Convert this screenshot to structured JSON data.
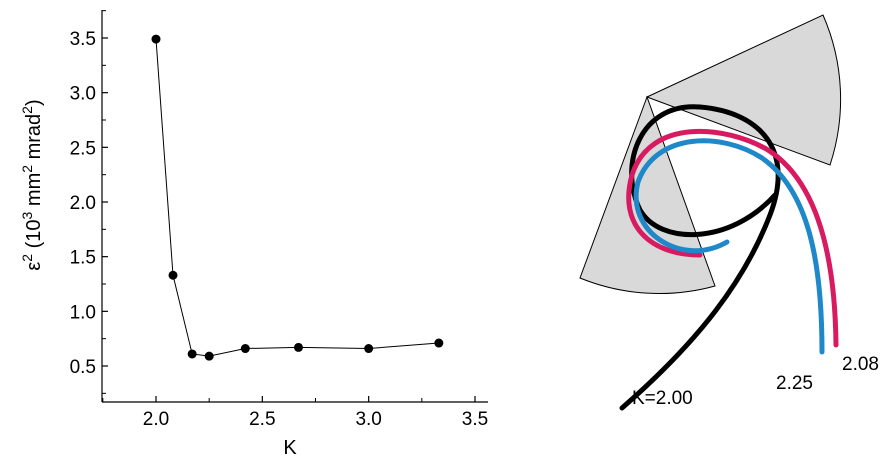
{
  "chart_data": [
    {
      "type": "line",
      "xlabel": "K",
      "ylabel": {
        "symbol": "ε",
        "sup1": "2",
        "open": " (10",
        "sup2": "3",
        "mid": " mm",
        "sup3": "2",
        "mid2": " mrad",
        "sup4": "2",
        "close": ")"
      },
      "xlim": [
        1.75,
        3.55
      ],
      "ylim": [
        0.25,
        3.75
      ],
      "xticks": [
        "2.0",
        "2.5",
        "3.0",
        "3.5"
      ],
      "yticks": [
        "0.5",
        "1.0",
        "1.5",
        "2.0",
        "2.5",
        "3.0",
        "3.5"
      ],
      "marker": "filled-circle",
      "grid": false,
      "series": [
        {
          "x": [
            2.0,
            2.08,
            2.17,
            2.25,
            2.42,
            2.67,
            3.0,
            3.33
          ],
          "y": [
            3.49,
            1.33,
            0.61,
            0.59,
            0.66,
            0.67,
            0.66,
            0.71
          ]
        }
      ]
    }
  ],
  "diagram": {
    "curve_labels": {
      "k200": "K=2.00",
      "k225": "2.25",
      "k208": "2.08"
    },
    "colors": {
      "k200": "#000000",
      "k208": "#d81b60",
      "k225": "#1e88c8",
      "sector_fill": "#d9d9d9"
    }
  }
}
